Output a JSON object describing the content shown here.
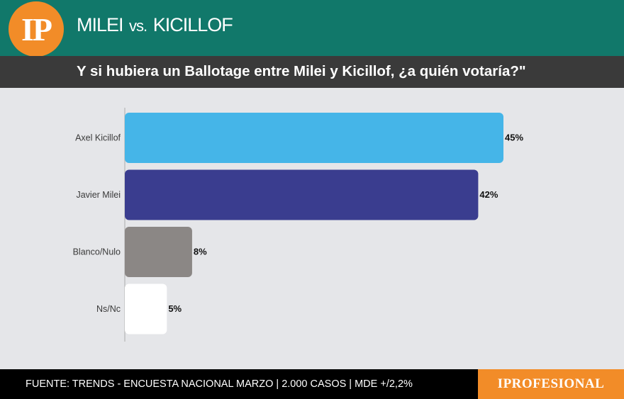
{
  "header": {
    "logo_text": "IP",
    "title_left": "MILEI",
    "title_vs": "vs.",
    "title_right": "KICILLOF"
  },
  "chart_data": {
    "type": "bar",
    "orientation": "horizontal",
    "title": "Y si hubiera un Ballotage entre Milei y Kicillof, ¿a quién votaría?\"",
    "categories": [
      "Axel Kicillof",
      "Javier Milei",
      "Blanco/Nulo",
      "Ns/Nc"
    ],
    "values": [
      45,
      42,
      8,
      5
    ],
    "value_labels": [
      "45%",
      "42%",
      "8%",
      "5%"
    ],
    "colors": [
      "#45b5e8",
      "#3a3d8f",
      "#8b8785",
      "#ffffff"
    ],
    "xlim": [
      0,
      45
    ],
    "grid": false,
    "legend": "none"
  },
  "footer": {
    "source": "FUENTE: TRENDS - ENCUESTA NACIONAL MARZO | 2.000 CASOS | MDE +/2,2%",
    "brand": "IPROFESIONAL"
  }
}
